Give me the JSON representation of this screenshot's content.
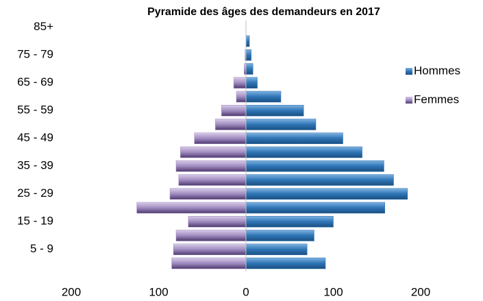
{
  "chart_data": {
    "type": "bar",
    "orientation": "horizontal",
    "stacked": true,
    "title": "Pyramide des âges des demandeurs en 2017",
    "categories": [
      null,
      "5 - 9",
      null,
      "15 - 19",
      null,
      "25 - 29",
      null,
      "35 - 39",
      null,
      "45 - 49",
      null,
      "55 - 59",
      null,
      "65 - 69",
      null,
      "75 - 79",
      null,
      "85+"
    ],
    "series": [
      {
        "name": "Hommes",
        "color": "#2e75b6",
        "values": [
          91,
          70,
          78,
          100,
          159,
          185,
          169,
          158,
          133,
          111,
          80,
          66,
          40,
          13,
          8,
          6,
          4,
          0
        ]
      },
      {
        "name": "Femmes",
        "color": "#a08cc0",
        "values": [
          -85,
          -83,
          -80,
          -66,
          -125,
          -87,
          -77,
          -80,
          -75,
          -59,
          -35,
          -28,
          -11,
          -14,
          -2,
          -1,
          0,
          0
        ]
      }
    ],
    "xlim": [
      -200,
      200
    ],
    "xticks": [
      {
        "value": -200,
        "label": "200"
      },
      {
        "value": -100,
        "label": "100"
      },
      0,
      100,
      200
    ],
    "legend": "right"
  }
}
